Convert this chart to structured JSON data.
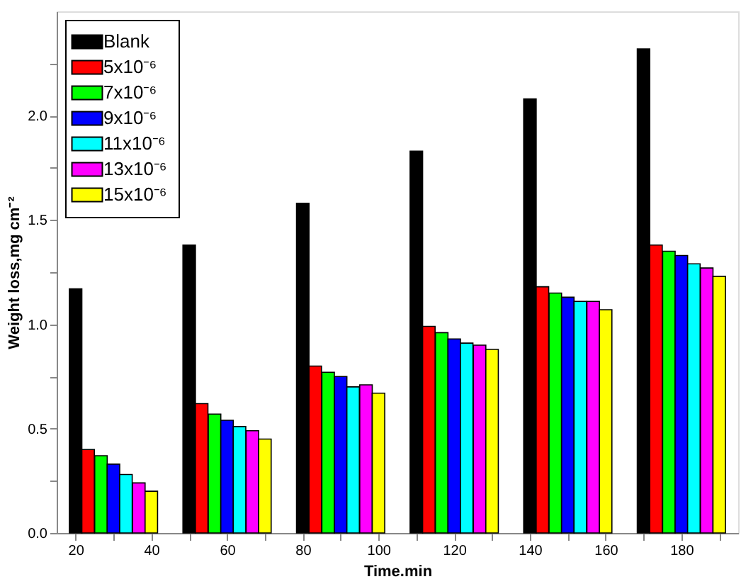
{
  "chart_data": {
    "type": "bar",
    "xlabel": "Time.min",
    "ylabel": "Weight loss,mg cm⁻²",
    "xlim": [
      15,
      195
    ],
    "ylim": [
      0,
      2.5
    ],
    "xticks": [
      20,
      {
        "value": 30,
        "label": null
      },
      40,
      {
        "value": 50,
        "label": null
      },
      60,
      {
        "value": 70,
        "label": null
      },
      80,
      {
        "value": 90,
        "label": null
      },
      100,
      {
        "value": 110,
        "label": null
      },
      120,
      {
        "value": 130,
        "label": null
      },
      140,
      {
        "value": 150,
        "label": null
      },
      160,
      {
        "value": 170,
        "label": null
      },
      180,
      {
        "value": 190,
        "label": null
      }
    ],
    "yticks": [
      {
        "value": 0,
        "label": "0.0"
      },
      {
        "value": 0.25,
        "label": null
      },
      {
        "value": 0.5,
        "label": "0.5"
      },
      {
        "value": 0.75,
        "label": null
      },
      {
        "value": 1,
        "label": "1.0"
      },
      {
        "value": 1.25,
        "label": null
      },
      {
        "value": 1.5,
        "label": "1.5"
      },
      {
        "value": 1.75,
        "label": null
      },
      {
        "value": 2,
        "label": "2.0"
      },
      {
        "value": 2.25,
        "label": null
      }
    ],
    "grid": false,
    "legend": "top left",
    "series": [
      {
        "name": "Blank",
        "color": "#000000",
        "x": [
          20,
          50,
          80,
          110,
          140,
          170
        ],
        "values": [
          1.17,
          1.38,
          1.58,
          1.83,
          2.08,
          2.32
        ]
      },
      {
        "name": "5x10⁻⁶",
        "color": "#ff0000",
        "x": [
          23.3,
          53.3,
          83.3,
          113.3,
          143.3,
          173.3
        ],
        "values": [
          0.4,
          0.62,
          0.8,
          0.99,
          1.18,
          1.38
        ]
      },
      {
        "name": "7x10⁻⁶",
        "color": "#00ff00",
        "x": [
          26.7,
          56.7,
          86.7,
          116.7,
          146.7,
          176.7
        ],
        "values": [
          0.37,
          0.57,
          0.77,
          0.96,
          1.15,
          1.35
        ]
      },
      {
        "name": "9x10⁻⁶",
        "color": "#0000ff",
        "x": [
          30,
          60,
          90,
          120,
          150,
          180
        ],
        "values": [
          0.33,
          0.54,
          0.75,
          0.93,
          1.13,
          1.33
        ]
      },
      {
        "name": "11x10⁻⁶",
        "color": "#00ffff",
        "x": [
          33.3,
          63.3,
          93.3,
          123.3,
          153.3,
          183.3
        ],
        "values": [
          0.28,
          0.51,
          0.7,
          0.91,
          1.11,
          1.29
        ]
      },
      {
        "name": "13x10⁻⁶",
        "color": "#ff00ff",
        "x": [
          36.7,
          66.7,
          96.7,
          126.7,
          156.7,
          186.7
        ],
        "values": [
          0.24,
          0.49,
          0.71,
          0.9,
          1.11,
          1.27
        ]
      },
      {
        "name": "15x10⁻⁶",
        "color": "#ffff00",
        "x": [
          40,
          70,
          100,
          130,
          160,
          190
        ],
        "values": [
          0.2,
          0.45,
          0.67,
          0.88,
          1.07,
          1.23
        ]
      }
    ]
  }
}
